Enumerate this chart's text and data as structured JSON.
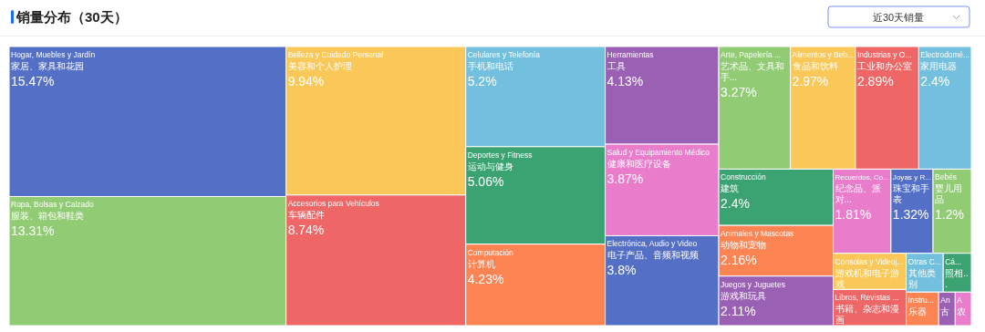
{
  "chart_data": {
    "type": "other",
    "title": "销量分布（30天）",
    "annotations": [
      "近30天销量"
    ],
    "categories": [
      "Hogar, Muebles y Jardín\n家居、家具和花园",
      "Ropa, Bolsas y Calzado\n服装、箱包和鞋类",
      "Belleza y Cuidado Personal\n美容和个人护理",
      "Accesorios para Vehículos\n车辆配件",
      "Celulares y Telefonía\n手机和电话",
      "Deportes y Fitness\n运动与健身",
      "Computación\n计算机",
      "Herramientas\n工具",
      "Salud y Equipamiento Médico\n健康和医疗设备",
      "Electrónica, Audio y Video\n电子产品、音频和视频",
      "Arte, Papelería ...\n艺术品、文具和手...",
      "Alimentos y Beb...\n食品和饮料",
      "Industrias y O...\n工业和办公室",
      "Electrodomé...\n家用电器",
      "Construcción\n建筑",
      "Animales y Mascotas\n动物和宠物",
      "Juegos y Juguetes\n游戏和玩具",
      "Recuerdos, Co...\n纪念品、派对...",
      "Joyas y R...\n珠宝和手表",
      "Bebés\n婴儿用品",
      "Consolas y Videoj...\n游戏机和电子游戏",
      "Libros, Revistas ...\n书籍、杂志和漫画",
      "Otras C...\n其他类别",
      "Cá...\n照相...",
      "Instru...\n乐器",
      "An\n古",
      "A\n农"
    ],
    "values": [
      15.47,
      13.31,
      9.94,
      8.74,
      5.2,
      5.06,
      4.23,
      4.13,
      3.87,
      3.8,
      3.27,
      2.97,
      2.89,
      2.4,
      2.4,
      2.16,
      2.11,
      1.81,
      1.32,
      1.2,
      null,
      null,
      null,
      null,
      null,
      null,
      null
    ],
    "value_labels": [
      "15.47%",
      "13.31%",
      "9.94%",
      "8.74%",
      "5.2%",
      "5.06%",
      "4.23%",
      "4.13%",
      "3.87%",
      "3.8%",
      "3.27%",
      "2.97%",
      "2.89%",
      "2.4%",
      "2.4%",
      "2.16%",
      "2.11%",
      "1.81%",
      "1.32%",
      "1.2%",
      null,
      null,
      null,
      null,
      null,
      null,
      null
    ],
    "colors": [
      "#5470c6",
      "#91cc75",
      "#fac858",
      "#ee6666",
      "#73c0de",
      "#3ba272",
      "#fc8452",
      "#9a60b4",
      "#ea7ccc",
      "#5470c6",
      "#91cc75",
      "#fac858",
      "#ee6666",
      "#73c0de",
      "#3ba272",
      "#fc8452",
      "#9a60b4",
      "#ea7ccc",
      "#5470c6",
      "#91cc75",
      "#fac858",
      "#ee6666",
      "#73c0de",
      "#3ba272",
      "#fc8452",
      "#9a60b4",
      "#ea7ccc"
    ]
  }
}
